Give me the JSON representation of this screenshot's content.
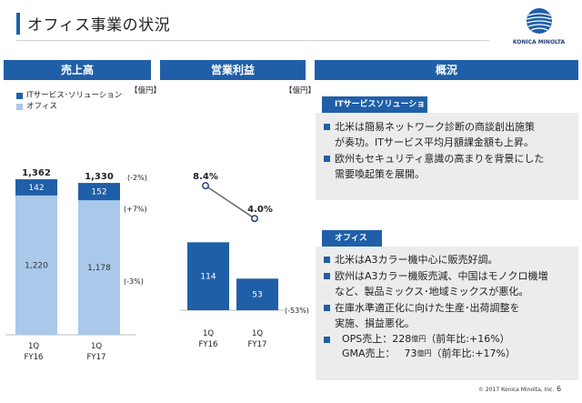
{
  "slide": {
    "title": "オフィス事業の状況",
    "page_number": "6",
    "copyright": "© 2017 Konica Minolta, Inc.",
    "logo_text": "KONICA MINOLTA"
  },
  "sections": {
    "sales_header": "売上高",
    "profit_header": "営業利益",
    "overview_header": "概況"
  },
  "legend": {
    "it_label": "ITサービス･ソリューション",
    "office_label": "オフィス",
    "it_color": "#1f5fa8",
    "office_color": "#a9c8ea"
  },
  "units": {
    "sales": "【億円】",
    "profit": "【億円】"
  },
  "chart_data": [
    {
      "type": "bar",
      "stacked": true,
      "categories": [
        [
          "1Q",
          "FY16"
        ],
        [
          "1Q",
          "FY17"
        ]
      ],
      "series": [
        {
          "name": "オフィス",
          "values": [
            1220,
            1178
          ],
          "labels": [
            "1,220",
            "1,178"
          ]
        },
        {
          "name": "ITサービス･ソリューション",
          "values": [
            142,
            152
          ],
          "labels": [
            "142",
            "152"
          ]
        }
      ],
      "totals": [
        1362,
        1330
      ],
      "total_labels": [
        "1,362",
        "1,330"
      ],
      "changes": {
        "total": "(-2%)",
        "it": "(+7%)",
        "office": "(-3%)"
      }
    },
    {
      "type": "bar",
      "categories": [
        [
          "1Q",
          "FY16"
        ],
        [
          "1Q",
          "FY17"
        ]
      ],
      "values": [
        114,
        53
      ],
      "value_labels": [
        "114",
        "53"
      ],
      "change": "(-53%)",
      "margin_line": {
        "type": "line",
        "values": [
          8.4,
          4.0
        ],
        "labels": [
          "8.4%",
          "4.0%"
        ]
      }
    }
  ],
  "overview": {
    "it_header": "ITサービスソリューション",
    "it_bullets": [
      [
        "北米は簡易ネットワーク診断の商談創出施策",
        "が奏功。ITサービス平均月額課金額も上昇。"
      ],
      [
        "欧州もセキュリティ意識の高まりを背景にした",
        "需要喚起策を展開。"
      ]
    ],
    "office_header": "オフィス",
    "office_bullets": [
      [
        "北米はA3カラー機中心に販売好調。"
      ],
      [
        "欧州はA3カラー機販売減、中国はモノクロ機増",
        "など、製品ミックス･地域ミックスが悪化。"
      ],
      [
        "在庫水準適正化に向けた生産･出荷調整を",
        "実施、損益悪化。"
      ]
    ],
    "ops": {
      "ops_label": "OPS売上：",
      "ops_value": "228",
      "ops_unit": "億円",
      "ops_change": "（前年比:+16%）",
      "gma_label": "GMA売上：",
      "gma_value": "73",
      "gma_unit": "億円",
      "gma_change": "（前年比:+17%）"
    }
  }
}
